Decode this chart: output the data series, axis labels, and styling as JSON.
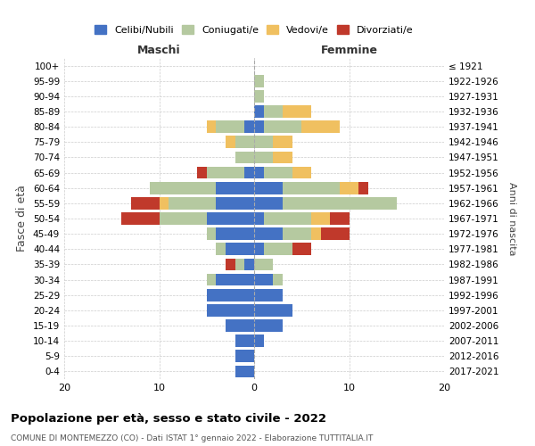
{
  "age_groups": [
    "100+",
    "95-99",
    "90-94",
    "85-89",
    "80-84",
    "75-79",
    "70-74",
    "65-69",
    "60-64",
    "55-59",
    "50-54",
    "45-49",
    "40-44",
    "35-39",
    "30-34",
    "25-29",
    "20-24",
    "15-19",
    "10-14",
    "5-9",
    "0-4"
  ],
  "birth_years": [
    "≤ 1921",
    "1922-1926",
    "1927-1931",
    "1932-1936",
    "1937-1941",
    "1942-1946",
    "1947-1951",
    "1952-1956",
    "1957-1961",
    "1962-1966",
    "1967-1971",
    "1972-1976",
    "1977-1981",
    "1982-1986",
    "1987-1991",
    "1992-1996",
    "1997-2001",
    "2002-2006",
    "2007-2011",
    "2012-2016",
    "2017-2021"
  ],
  "colors": {
    "celibi": "#4472c4",
    "coniugati": "#b5c9a0",
    "vedovi": "#f0c060",
    "divorziati": "#c0392b"
  },
  "maschi": {
    "celibi": [
      0,
      0,
      0,
      0,
      1,
      0,
      0,
      1,
      4,
      4,
      5,
      4,
      3,
      1,
      4,
      5,
      5,
      3,
      2,
      2,
      2
    ],
    "coniugati": [
      0,
      0,
      0,
      0,
      3,
      2,
      2,
      4,
      7,
      5,
      5,
      1,
      1,
      1,
      1,
      0,
      0,
      0,
      0,
      0,
      0
    ],
    "vedovi": [
      0,
      0,
      0,
      0,
      1,
      1,
      0,
      0,
      0,
      1,
      0,
      0,
      0,
      0,
      0,
      0,
      0,
      0,
      0,
      0,
      0
    ],
    "divorziati": [
      0,
      0,
      0,
      0,
      0,
      0,
      0,
      1,
      0,
      3,
      4,
      0,
      0,
      1,
      0,
      0,
      0,
      0,
      0,
      0,
      0
    ]
  },
  "femmine": {
    "celibi": [
      0,
      0,
      0,
      1,
      1,
      0,
      0,
      1,
      3,
      3,
      1,
      3,
      1,
      0,
      2,
      3,
      4,
      3,
      1,
      0,
      0
    ],
    "coniugati": [
      0,
      1,
      1,
      2,
      4,
      2,
      2,
      3,
      6,
      12,
      5,
      3,
      3,
      2,
      1,
      0,
      0,
      0,
      0,
      0,
      0
    ],
    "vedovi": [
      0,
      0,
      0,
      3,
      4,
      2,
      2,
      2,
      2,
      0,
      2,
      1,
      0,
      0,
      0,
      0,
      0,
      0,
      0,
      0,
      0
    ],
    "divorziati": [
      0,
      0,
      0,
      0,
      0,
      0,
      0,
      0,
      1,
      0,
      2,
      3,
      2,
      0,
      0,
      0,
      0,
      0,
      0,
      0,
      0
    ]
  },
  "xlim": [
    -20,
    20
  ],
  "xticks": [
    -20,
    -10,
    0,
    10,
    20
  ],
  "xticklabels": [
    "20",
    "10",
    "0",
    "10",
    "20"
  ],
  "title": "Popolazione per età, sesso e stato civile - 2022",
  "subtitle": "COMUNE DI MONTEMEZZO (CO) - Dati ISTAT 1° gennaio 2022 - Elaborazione TUTTITALIA.IT",
  "ylabel_left": "Fasce di età",
  "ylabel_right": "Anni di nascita",
  "label_maschi": "Maschi",
  "label_femmine": "Femmine",
  "legend_labels": [
    "Celibi/Nubili",
    "Coniugati/e",
    "Vedovi/e",
    "Divorziati/e"
  ],
  "bar_height": 0.8
}
